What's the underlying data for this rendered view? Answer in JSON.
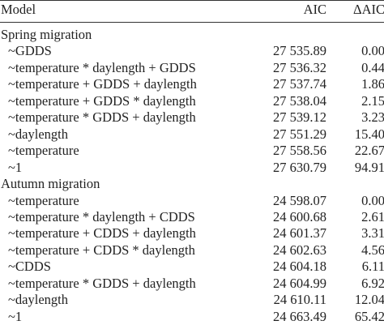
{
  "table": {
    "header": [
      "Model",
      "AIC",
      "ΔAIC"
    ],
    "groups": [
      {
        "title": "Spring migration",
        "rows": [
          [
            "~GDDS",
            "27 535.89",
            "0.00"
          ],
          [
            "~temperature * daylength + GDDS",
            "27 536.32",
            "0.44"
          ],
          [
            "~temperature + GDDS + daylength",
            "27 537.74",
            "1.86"
          ],
          [
            "~temperature + GDDS * daylength",
            "27 538.04",
            "2.15"
          ],
          [
            "~temperature * GDDS + daylength",
            "27 539.12",
            "3.23"
          ],
          [
            "~daylength",
            "27 551.29",
            "15.40"
          ],
          [
            "~temperature",
            "27 558.56",
            "22.67"
          ],
          [
            "~1",
            "27 630.79",
            "94.91"
          ]
        ]
      },
      {
        "title": "Autumn migration",
        "rows": [
          [
            "~temperature",
            "24 598.07",
            "0.00"
          ],
          [
            "~temperature * daylength + CDDS",
            "24 600.68",
            "2.61"
          ],
          [
            "~temperature + CDDS + daylength",
            "24 601.37",
            "3.31"
          ],
          [
            "~temperature + CDDS * daylength",
            "24 602.63",
            "4.56"
          ],
          [
            "~CDDS",
            "24 604.18",
            "6.11"
          ],
          [
            "~temperature * GDDS + daylength",
            "24 604.99",
            "6.92"
          ],
          [
            "~daylength",
            "24 610.11",
            "12.04"
          ],
          [
            "~1",
            "24 663.49",
            "65.42"
          ]
        ]
      }
    ]
  }
}
